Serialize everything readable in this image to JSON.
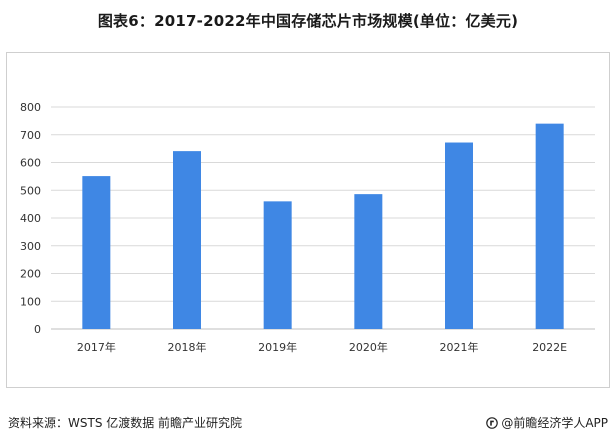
{
  "title": "图表6：2017-2022年中国存储芯片市场规模(单位：亿美元)",
  "footer": {
    "source": "资料来源：WSTS 亿渡数据 前瞻产业研究院",
    "credit": "@前瞻经济学人APP",
    "credit_icon": "qianzhan-logo-icon"
  },
  "colors": {
    "bar": "#3F87E4",
    "grid": "#D9D9D9",
    "axis": "#BFBFBF"
  },
  "chart_data": {
    "type": "bar",
    "title": "图表6：2017-2022年中国存储芯片市场规模(单位：亿美元)",
    "categories": [
      "2017年",
      "2018年",
      "2019年",
      "2020年",
      "2021年",
      "2022E"
    ],
    "values": [
      551,
      641,
      460,
      486,
      672,
      740
    ],
    "xlabel": "",
    "ylabel": "",
    "ylim": [
      0,
      800
    ],
    "yticks": [
      0,
      100,
      200,
      300,
      400,
      500,
      600,
      700,
      800
    ],
    "grid": true,
    "legend": "none"
  }
}
